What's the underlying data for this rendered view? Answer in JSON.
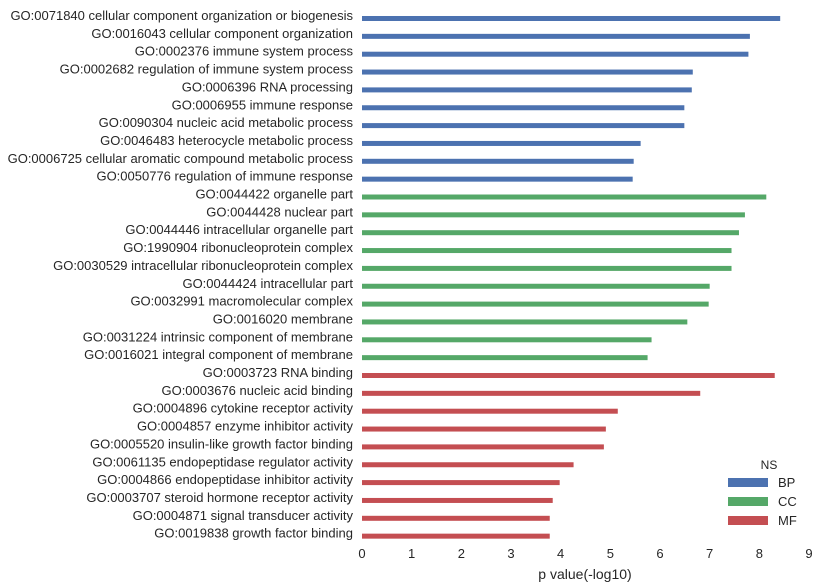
{
  "chart_data": {
    "type": "bar",
    "orientation": "horizontal",
    "xlabel": "p value(-log10)",
    "xlim": [
      0,
      9
    ],
    "xticks": [
      "0",
      "1",
      "2",
      "3",
      "4",
      "5",
      "6",
      "7",
      "8",
      "9"
    ],
    "grid": false,
    "legend": {
      "title": "NS",
      "placement": "bottom-right",
      "entries": [
        {
          "name": "BP",
          "color": "#4c72b0"
        },
        {
          "name": "CC",
          "color": "#55a868"
        },
        {
          "name": "MF",
          "color": "#c44e52"
        }
      ]
    },
    "bars": [
      {
        "label": "GO:0071840 cellular component organization or biogenesis",
        "value": 8.42,
        "ns": "BP"
      },
      {
        "label": "GO:0016043 cellular component organization",
        "value": 7.81,
        "ns": "BP"
      },
      {
        "label": "GO:0002376 immune system process",
        "value": 7.78,
        "ns": "BP"
      },
      {
        "label": "GO:0002682 regulation of immune system process",
        "value": 6.66,
        "ns": "BP"
      },
      {
        "label": "GO:0006396 RNA processing",
        "value": 6.64,
        "ns": "BP"
      },
      {
        "label": "GO:0006955 immune response",
        "value": 6.49,
        "ns": "BP"
      },
      {
        "label": "GO:0090304 nucleic acid metabolic process",
        "value": 6.49,
        "ns": "BP"
      },
      {
        "label": "GO:0046483 heterocycle metabolic process",
        "value": 5.61,
        "ns": "BP"
      },
      {
        "label": "GO:0006725 cellular aromatic compound metabolic process",
        "value": 5.47,
        "ns": "BP"
      },
      {
        "label": "GO:0050776 regulation of immune response",
        "value": 5.45,
        "ns": "BP"
      },
      {
        "label": "GO:0044422 organelle part",
        "value": 8.14,
        "ns": "CC"
      },
      {
        "label": "GO:0044428 nuclear part",
        "value": 7.71,
        "ns": "CC"
      },
      {
        "label": "GO:0044446 intracellular organelle part",
        "value": 7.59,
        "ns": "CC"
      },
      {
        "label": "GO:1990904 ribonucleoprotein complex",
        "value": 7.44,
        "ns": "CC"
      },
      {
        "label": "GO:0030529 intracellular ribonucleoprotein complex",
        "value": 7.44,
        "ns": "CC"
      },
      {
        "label": "GO:0044424 intracellular part",
        "value": 7.0,
        "ns": "CC"
      },
      {
        "label": "GO:0032991 macromolecular complex",
        "value": 6.98,
        "ns": "CC"
      },
      {
        "label": "GO:0016020 membrane",
        "value": 6.55,
        "ns": "CC"
      },
      {
        "label": "GO:0031224 intrinsic component of membrane",
        "value": 5.83,
        "ns": "CC"
      },
      {
        "label": "GO:0016021 integral component of membrane",
        "value": 5.75,
        "ns": "CC"
      },
      {
        "label": "GO:0003723 RNA binding",
        "value": 8.31,
        "ns": "MF"
      },
      {
        "label": "GO:0003676 nucleic acid binding",
        "value": 6.81,
        "ns": "MF"
      },
      {
        "label": "GO:0004896 cytokine receptor activity",
        "value": 5.15,
        "ns": "MF"
      },
      {
        "label": "GO:0004857 enzyme inhibitor activity",
        "value": 4.91,
        "ns": "MF"
      },
      {
        "label": "GO:0005520 insulin-like growth factor binding",
        "value": 4.87,
        "ns": "MF"
      },
      {
        "label": "GO:0061135 endopeptidase regulator activity",
        "value": 4.26,
        "ns": "MF"
      },
      {
        "label": "GO:0004866 endopeptidase inhibitor activity",
        "value": 3.98,
        "ns": "MF"
      },
      {
        "label": "GO:0003707 steroid hormone receptor activity",
        "value": 3.84,
        "ns": "MF"
      },
      {
        "label": "GO:0004871 signal transducer activity",
        "value": 3.78,
        "ns": "MF"
      },
      {
        "label": "GO:0019838 growth factor binding",
        "value": 3.78,
        "ns": "MF"
      }
    ]
  }
}
